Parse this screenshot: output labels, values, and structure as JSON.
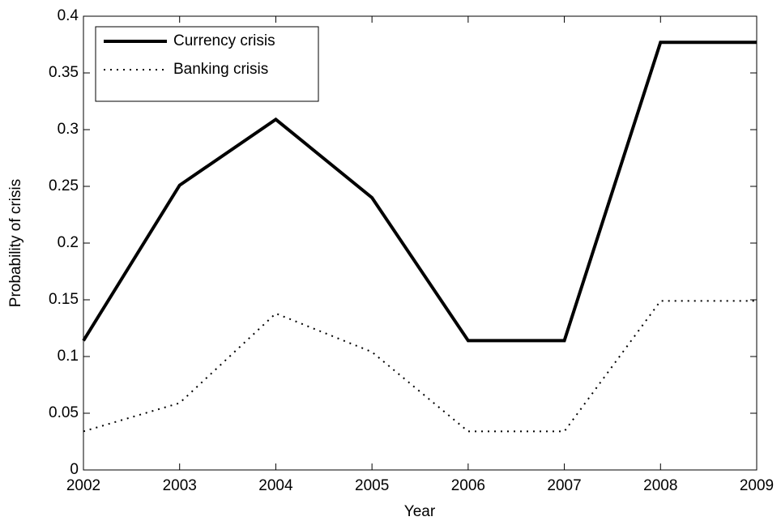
{
  "chart_data": {
    "type": "line",
    "x_label": "Year",
    "y_label": "Probability of crisis",
    "x": [
      2002,
      2003,
      2004,
      2005,
      2006,
      2007,
      2008,
      2009
    ],
    "series": [
      {
        "name": "Currency crisis",
        "color": "#000000",
        "linestyle": "solid",
        "values": [
          0.114,
          0.251,
          0.309,
          0.24,
          0.114,
          0.114,
          0.377,
          0.377
        ]
      },
      {
        "name": "Banking crisis",
        "color": "#000000",
        "linestyle": "dotted",
        "values": [
          0.034,
          0.059,
          0.138,
          0.104,
          0.034,
          0.034,
          0.149,
          0.149
        ]
      }
    ],
    "xlim": [
      2002,
      2009
    ],
    "xticks": [
      2002,
      2003,
      2004,
      2005,
      2006,
      2007,
      2008,
      2009
    ],
    "ylim": [
      0,
      0.4
    ],
    "yticks": [
      0,
      0.05,
      0.1,
      0.15,
      0.2,
      0.25,
      0.3,
      0.35,
      0.4
    ],
    "grid": false,
    "legend": "upper-left"
  }
}
